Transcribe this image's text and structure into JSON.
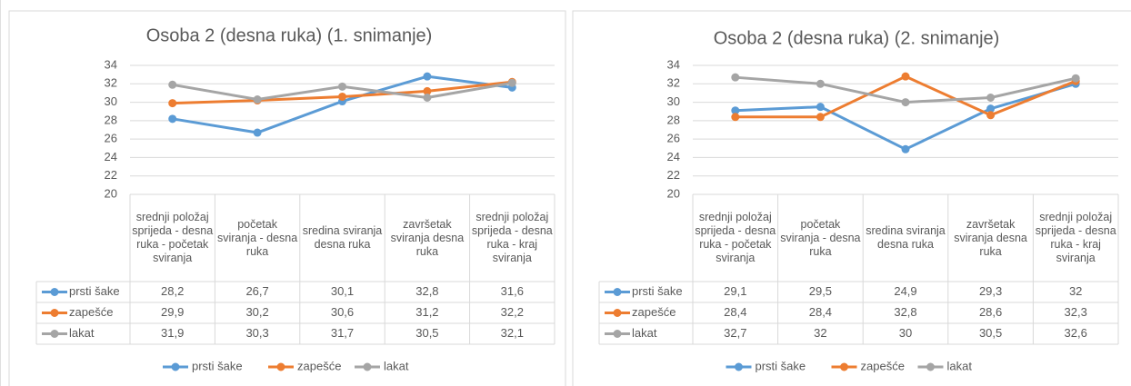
{
  "chart_data": [
    {
      "type": "line",
      "title": "Osoba 2 (desna ruka) (1. snimanje)",
      "categories": [
        "srednji položaj sprijeda - desna ruka - početak sviranja",
        "početak sviranja - desna ruka",
        "sredina sviranja desna ruka",
        "završetak sviranja desna ruka",
        "srednji položaj sprijeda - desna ruka - kraj sviranja"
      ],
      "series": [
        {
          "name": "prsti šake",
          "color": "#5b9bd5",
          "values": [
            28.2,
            26.7,
            30.1,
            32.8,
            31.6
          ],
          "value_labels": [
            "28,2",
            "26,7",
            "30,1",
            "32,8",
            "31,6"
          ]
        },
        {
          "name": "zapešće",
          "color": "#ed7d31",
          "values": [
            29.9,
            30.2,
            30.6,
            31.2,
            32.2
          ],
          "value_labels": [
            "29,9",
            "30,2",
            "30,6",
            "31,2",
            "32,2"
          ]
        },
        {
          "name": "lakat",
          "color": "#a5a5a5",
          "values": [
            31.9,
            30.3,
            31.7,
            30.5,
            32.1
          ],
          "value_labels": [
            "31,9",
            "30,3",
            "31,7",
            "30,5",
            "32,1"
          ]
        }
      ],
      "ylim": [
        20,
        34
      ],
      "yticks": [
        20,
        22,
        24,
        26,
        28,
        30,
        32,
        34
      ],
      "grid": true,
      "legend": "bottom",
      "data_table": true
    },
    {
      "type": "line",
      "title": "Osoba 2 (desna ruka) (2. snimanje)",
      "categories": [
        "srednji položaj sprijeda - desna ruka - početak sviranja",
        "početak sviranja - desna ruka",
        "sredina sviranja desna ruka",
        "završetak sviranja desna ruka",
        "srednji položaj sprijeda - desna ruka - kraj sviranja"
      ],
      "series": [
        {
          "name": "prsti šake",
          "color": "#5b9bd5",
          "values": [
            29.1,
            29.5,
            24.9,
            29.3,
            32
          ],
          "value_labels": [
            "29,1",
            "29,5",
            "24,9",
            "29,3",
            "32"
          ]
        },
        {
          "name": "zapešće",
          "color": "#ed7d31",
          "values": [
            28.4,
            28.4,
            32.8,
            28.6,
            32.3
          ],
          "value_labels": [
            "28,4",
            "28,4",
            "32,8",
            "28,6",
            "32,3"
          ]
        },
        {
          "name": "lakat",
          "color": "#a5a5a5",
          "values": [
            32.7,
            32,
            30,
            30.5,
            32.6
          ],
          "value_labels": [
            "32,7",
            "32",
            "30",
            "30,5",
            "32,6"
          ]
        }
      ],
      "ylim": [
        20,
        34
      ],
      "yticks": [
        20,
        22,
        24,
        26,
        28,
        30,
        32,
        34
      ],
      "grid": true,
      "legend": "bottom",
      "data_table": true
    }
  ]
}
